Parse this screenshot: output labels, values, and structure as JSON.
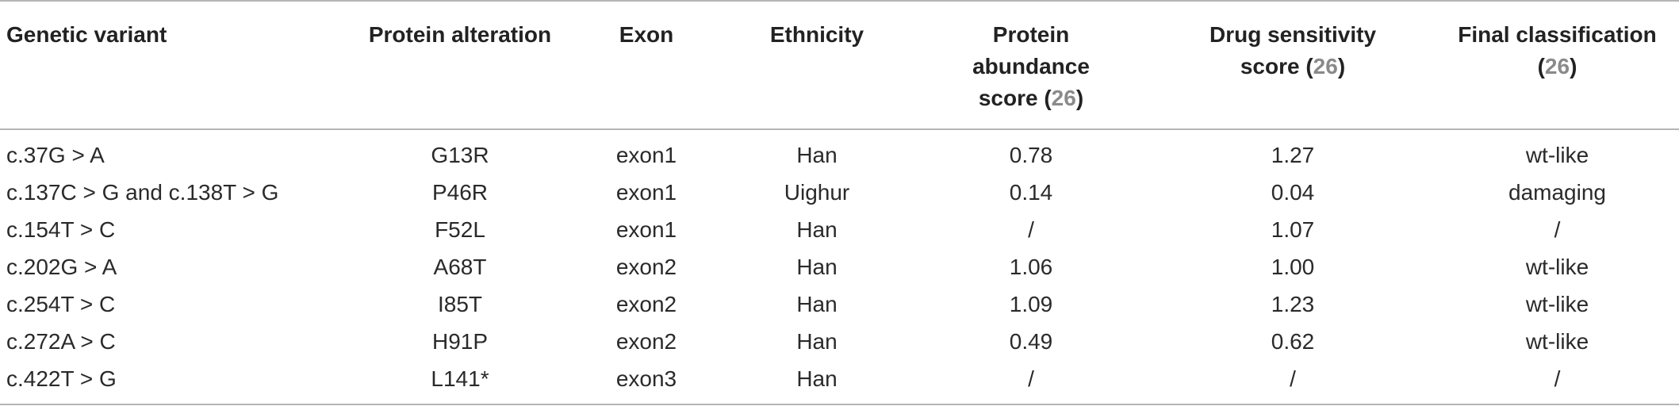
{
  "table": {
    "headers": [
      {
        "text": "Genetic variant",
        "ref": ""
      },
      {
        "text": "Protein alteration",
        "ref": ""
      },
      {
        "text": "Exon",
        "ref": ""
      },
      {
        "text": "Ethnicity",
        "ref": ""
      },
      {
        "text": "Protein abundance score (",
        "ref": "26",
        "after": ")"
      },
      {
        "text": "Drug sensitivity score (",
        "ref": "26",
        "after": ")"
      },
      {
        "text": "Final classification (",
        "ref": "26",
        "after": ")"
      }
    ],
    "rows": [
      [
        "c.37G > A",
        "G13R",
        "exon1",
        "Han",
        "0.78",
        "1.27",
        "wt-like"
      ],
      [
        "c.137C > G and c.138T > G",
        "P46R",
        "exon1",
        "Uighur",
        "0.14",
        "0.04",
        "damaging"
      ],
      [
        "c.154T > C",
        "F52L",
        "exon1",
        "Han",
        "/",
        "1.07",
        "/"
      ],
      [
        "c.202G > A",
        "A68T",
        "exon2",
        "Han",
        "1.06",
        "1.00",
        "wt-like"
      ],
      [
        "c.254T > C",
        "I85T",
        "exon2",
        "Han",
        "1.09",
        "1.23",
        "wt-like"
      ],
      [
        "c.272A > C",
        "H91P",
        "exon2",
        "Han",
        "0.49",
        "0.62",
        "wt-like"
      ],
      [
        "c.422T > G",
        "L141*",
        "exon3",
        "Han",
        "/",
        "/",
        "/"
      ]
    ]
  }
}
